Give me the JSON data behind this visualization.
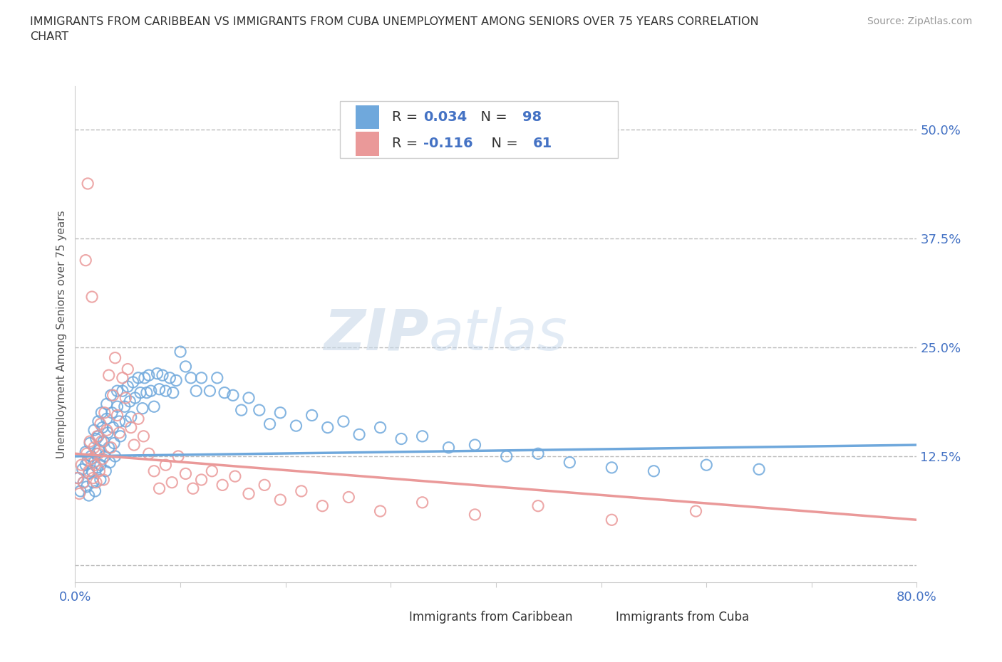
{
  "title": "IMMIGRANTS FROM CARIBBEAN VS IMMIGRANTS FROM CUBA UNEMPLOYMENT AMONG SENIORS OVER 75 YEARS CORRELATION\nCHART",
  "source_text": "Source: ZipAtlas.com",
  "ylabel": "Unemployment Among Seniors over 75 years",
  "xlim": [
    0.0,
    0.8
  ],
  "ylim": [
    -0.02,
    0.55
  ],
  "xticks": [
    0.0,
    0.1,
    0.2,
    0.3,
    0.4,
    0.5,
    0.6,
    0.7,
    0.8
  ],
  "yticks": [
    0.0,
    0.125,
    0.25,
    0.375,
    0.5
  ],
  "caribbean_color": "#6fa8dc",
  "cuba_color": "#ea9999",
  "caribbean_R": 0.034,
  "caribbean_N": 98,
  "cuba_R": -0.116,
  "cuba_N": 61,
  "watermark_zip": "ZIP",
  "watermark_atlas": "atlas",
  "grid_color": "#bbbbbb",
  "grid_style": "--",
  "carib_scatter_x": [
    0.003,
    0.005,
    0.007,
    0.008,
    0.01,
    0.01,
    0.011,
    0.012,
    0.013,
    0.013,
    0.014,
    0.015,
    0.016,
    0.017,
    0.018,
    0.018,
    0.019,
    0.02,
    0.02,
    0.021,
    0.022,
    0.022,
    0.023,
    0.024,
    0.024,
    0.025,
    0.026,
    0.027,
    0.028,
    0.029,
    0.03,
    0.03,
    0.031,
    0.032,
    0.033,
    0.034,
    0.035,
    0.036,
    0.037,
    0.038,
    0.04,
    0.04,
    0.042,
    0.043,
    0.045,
    0.047,
    0.048,
    0.05,
    0.052,
    0.053,
    0.055,
    0.057,
    0.06,
    0.062,
    0.064,
    0.066,
    0.068,
    0.07,
    0.072,
    0.075,
    0.078,
    0.08,
    0.083,
    0.086,
    0.09,
    0.093,
    0.096,
    0.1,
    0.105,
    0.11,
    0.115,
    0.12,
    0.128,
    0.135,
    0.142,
    0.15,
    0.158,
    0.165,
    0.175,
    0.185,
    0.195,
    0.21,
    0.225,
    0.24,
    0.255,
    0.27,
    0.29,
    0.31,
    0.33,
    0.355,
    0.38,
    0.41,
    0.44,
    0.47,
    0.51,
    0.55,
    0.6,
    0.65
  ],
  "carib_scatter_y": [
    0.1,
    0.085,
    0.11,
    0.095,
    0.13,
    0.115,
    0.09,
    0.12,
    0.105,
    0.08,
    0.14,
    0.125,
    0.108,
    0.095,
    0.155,
    0.118,
    0.085,
    0.145,
    0.128,
    0.112,
    0.165,
    0.148,
    0.132,
    0.115,
    0.098,
    0.175,
    0.158,
    0.142,
    0.125,
    0.108,
    0.185,
    0.168,
    0.152,
    0.135,
    0.118,
    0.195,
    0.175,
    0.158,
    0.14,
    0.125,
    0.2,
    0.182,
    0.165,
    0.148,
    0.2,
    0.182,
    0.165,
    0.205,
    0.188,
    0.17,
    0.21,
    0.192,
    0.215,
    0.198,
    0.18,
    0.215,
    0.198,
    0.218,
    0.2,
    0.182,
    0.22,
    0.202,
    0.218,
    0.2,
    0.215,
    0.198,
    0.212,
    0.245,
    0.228,
    0.215,
    0.2,
    0.215,
    0.2,
    0.215,
    0.198,
    0.195,
    0.178,
    0.192,
    0.178,
    0.162,
    0.175,
    0.16,
    0.172,
    0.158,
    0.165,
    0.15,
    0.158,
    0.145,
    0.148,
    0.135,
    0.138,
    0.125,
    0.128,
    0.118,
    0.112,
    0.108,
    0.115,
    0.11
  ],
  "cuba_scatter_x": [
    0.002,
    0.004,
    0.006,
    0.008,
    0.01,
    0.011,
    0.012,
    0.013,
    0.014,
    0.015,
    0.016,
    0.017,
    0.018,
    0.019,
    0.02,
    0.021,
    0.022,
    0.023,
    0.024,
    0.025,
    0.026,
    0.027,
    0.028,
    0.03,
    0.032,
    0.034,
    0.036,
    0.038,
    0.04,
    0.042,
    0.045,
    0.048,
    0.05,
    0.053,
    0.056,
    0.06,
    0.065,
    0.07,
    0.075,
    0.08,
    0.086,
    0.092,
    0.098,
    0.105,
    0.112,
    0.12,
    0.13,
    0.14,
    0.152,
    0.165,
    0.18,
    0.195,
    0.215,
    0.235,
    0.26,
    0.29,
    0.33,
    0.38,
    0.44,
    0.51,
    0.59
  ],
  "cuba_scatter_y": [
    0.1,
    0.082,
    0.115,
    0.095,
    0.35,
    0.128,
    0.438,
    0.108,
    0.142,
    0.122,
    0.308,
    0.1,
    0.135,
    0.115,
    0.095,
    0.148,
    0.128,
    0.108,
    0.162,
    0.142,
    0.122,
    0.098,
    0.175,
    0.155,
    0.218,
    0.135,
    0.195,
    0.238,
    0.172,
    0.152,
    0.215,
    0.192,
    0.225,
    0.158,
    0.138,
    0.168,
    0.148,
    0.128,
    0.108,
    0.088,
    0.115,
    0.095,
    0.125,
    0.105,
    0.088,
    0.098,
    0.108,
    0.092,
    0.102,
    0.082,
    0.092,
    0.075,
    0.085,
    0.068,
    0.078,
    0.062,
    0.072,
    0.058,
    0.068,
    0.052,
    0.062
  ]
}
